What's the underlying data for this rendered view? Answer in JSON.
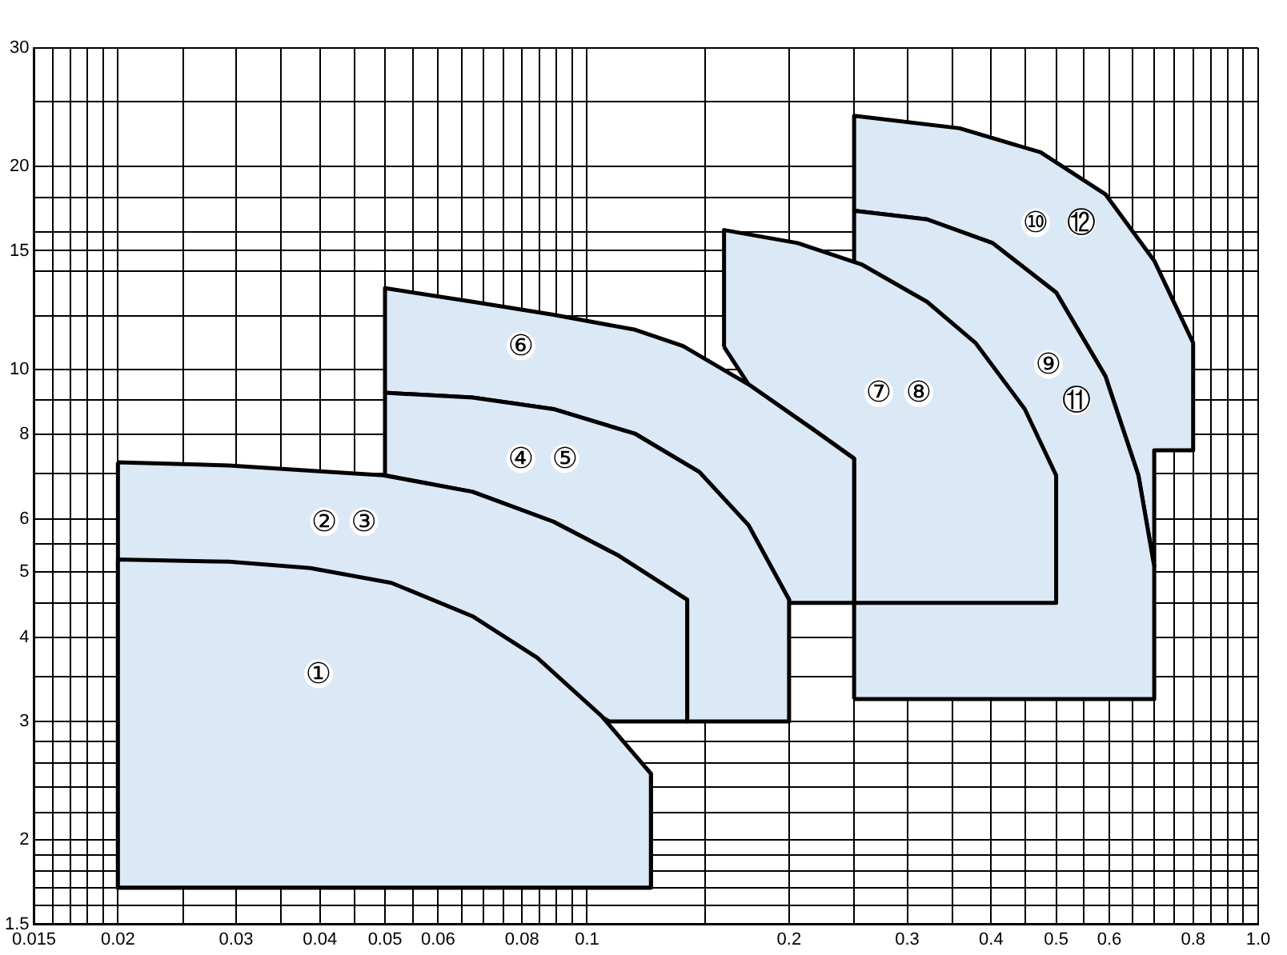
{
  "chart_data": {
    "type": "area",
    "log": "xy",
    "grid": true,
    "xlim": [
      0.015,
      1
    ],
    "ylim": [
      1.5,
      30
    ],
    "xticks": [
      0.015,
      {
        "value": 0.016,
        "label": null
      },
      {
        "value": 0.017,
        "label": null
      },
      {
        "value": 0.018,
        "label": null
      },
      {
        "value": 0.019,
        "label": null
      },
      0.02,
      {
        "value": 0.025,
        "label": null
      },
      0.03,
      {
        "value": 0.035,
        "label": null
      },
      0.04,
      {
        "value": 0.045,
        "label": null
      },
      0.05,
      {
        "value": 0.055,
        "label": null
      },
      0.06,
      {
        "value": 0.065,
        "label": null
      },
      {
        "value": 0.07,
        "label": null
      },
      {
        "value": 0.075,
        "label": null
      },
      0.08,
      {
        "value": 0.085,
        "label": null
      },
      {
        "value": 0.09,
        "label": null
      },
      {
        "value": 0.095,
        "label": null
      },
      0.1,
      {
        "value": 0.15,
        "label": null
      },
      0.2,
      {
        "value": 0.25,
        "label": null
      },
      0.3,
      {
        "value": 0.35,
        "label": null
      },
      0.4,
      {
        "value": 0.45,
        "label": null
      },
      0.5,
      {
        "value": 0.55,
        "label": null
      },
      0.6,
      {
        "value": 0.65,
        "label": null
      },
      {
        "value": 0.7,
        "label": null
      },
      {
        "value": 0.75,
        "label": null
      },
      0.8,
      {
        "value": 0.85,
        "label": null
      },
      {
        "value": 0.9,
        "label": null
      },
      {
        "value": 0.95,
        "label": null
      },
      {
        "value": 1,
        "label": "1.0"
      }
    ],
    "yticks": [
      1.5,
      {
        "value": 1.6,
        "label": null
      },
      {
        "value": 1.7,
        "label": null
      },
      {
        "value": 1.8,
        "label": null
      },
      {
        "value": 1.9,
        "label": null
      },
      2,
      {
        "value": 2.2,
        "label": null
      },
      {
        "value": 2.4,
        "label": null
      },
      {
        "value": 2.6,
        "label": null
      },
      {
        "value": 2.8,
        "label": null
      },
      3,
      {
        "value": 3.5,
        "label": null
      },
      4,
      {
        "value": 4.5,
        "label": null
      },
      5,
      {
        "value": 5.5,
        "label": null
      },
      6,
      {
        "value": 7,
        "label": null
      },
      8,
      {
        "value": 9,
        "label": null
      },
      10,
      {
        "value": 12,
        "label": null
      },
      {
        "value": 14,
        "label": null
      },
      15,
      {
        "value": 16,
        "label": null
      },
      {
        "value": 18,
        "label": null
      },
      20,
      {
        "value": 25,
        "label": null
      },
      30
    ],
    "series": [
      {
        "color": "#dbe8f5",
        "x": [
          0.02,
          0.1245,
          0.1245,
          0.105,
          0.0843,
          0.0675,
          0.0511,
          0.0387,
          0.0293,
          0.02,
          0.02
        ],
        "values": [
          1.7,
          1.7,
          2.51,
          3.06,
          3.73,
          4.3,
          4.82,
          5.07,
          5.18,
          5.22,
          1.7
        ]
      },
      {
        "color": "#dbe8f5",
        "x": [
          0.02,
          0.0293,
          0.0387,
          0.0497,
          0.0675,
          0.0891,
          0.111,
          0.141,
          0.141,
          0.108,
          0.1045,
          0.1245,
          0.1245,
          0.02,
          0.02
        ],
        "values": [
          7.28,
          7.2,
          7.07,
          6.96,
          6.58,
          5.94,
          5.3,
          4.55,
          3.0,
          3.0,
          3.06,
          2.51,
          1.7,
          1.7,
          7.28
        ]
      },
      {
        "color": "#dbe8f5",
        "x": [
          0.05,
          0.05,
          0.0675,
          0.0891,
          0.118,
          0.147,
          0.174,
          0.2,
          0.2,
          0.141,
          0.141,
          0.111,
          0.0891,
          0.0675,
          0.05
        ],
        "values": [
          6.96,
          9.23,
          9.08,
          8.73,
          8.02,
          7.04,
          5.87,
          4.55,
          3.0,
          3.0,
          4.55,
          5.3,
          5.94,
          6.58,
          6.96
        ]
      },
      {
        "color": "#dbe8f5",
        "x": [
          0.05,
          0.05,
          0.0675,
          0.0891,
          0.118,
          0.139,
          0.174,
          0.217,
          0.25,
          0.25,
          0.2,
          0.2,
          0.174,
          0.147,
          0.118,
          0.0891,
          0.0675,
          0.05
        ],
        "values": [
          9.23,
          13.2,
          12.6,
          12.05,
          11.45,
          10.83,
          9.5,
          8.15,
          7.37,
          4.5,
          4.5,
          4.55,
          5.87,
          7.04,
          8.02,
          8.73,
          9.08,
          9.23
        ]
      },
      {
        "color": "#dbe8f5",
        "x": [
          0.16,
          0.16,
          0.206,
          0.257,
          0.321,
          0.379,
          0.449,
          0.5,
          0.5,
          0.25,
          0.25,
          0.217,
          0.174,
          0.16
        ],
        "values": [
          10.8,
          16.1,
          15.4,
          14.3,
          12.6,
          10.95,
          8.73,
          6.96,
          4.5,
          4.5,
          7.37,
          8.15,
          9.5,
          10.8
        ]
      },
      {
        "color": "#dbe8f5",
        "x": [
          0.25,
          0.25,
          0.321,
          0.402,
          0.5,
          0.592,
          0.663,
          0.7,
          0.7,
          0.25
        ],
        "values": [
          3.24,
          17.2,
          16.7,
          15.4,
          13.0,
          9.77,
          6.96,
          5.1,
          3.24,
          3.24
        ]
      },
      {
        "color": "#dbe8f5",
        "x": [
          0.25,
          0.25,
          0.359,
          0.474,
          0.592,
          0.7,
          0.8,
          0.8,
          0.7,
          0.7,
          0.663,
          0.592,
          0.5,
          0.402,
          0.321,
          0.25
        ],
        "values": [
          17.2,
          23.8,
          22.8,
          21.0,
          18.2,
          14.5,
          10.95,
          7.58,
          7.58,
          5.1,
          6.96,
          9.77,
          13.0,
          15.4,
          16.7,
          17.2
        ]
      }
    ],
    "annotations": [
      {
        "text": "①",
        "x": 0.0398,
        "y": 3.53
      },
      {
        "text": "②",
        "x": 0.0406,
        "y": 5.94
      },
      {
        "text": "③",
        "x": 0.0465,
        "y": 5.94
      },
      {
        "text": "④",
        "x": 0.0797,
        "y": 7.37
      },
      {
        "text": "⑤",
        "x": 0.0927,
        "y": 7.37
      },
      {
        "text": "⑥",
        "x": 0.0797,
        "y": 10.83
      },
      {
        "text": "⑦",
        "x": 0.272,
        "y": 9.23
      },
      {
        "text": "⑧",
        "x": 0.312,
        "y": 9.23
      },
      {
        "text": "⑨",
        "x": 0.487,
        "y": 10.17
      },
      {
        "text": "⑪",
        "x": 0.536,
        "y": 8.98
      },
      {
        "text": "⑩",
        "x": 0.466,
        "y": 16.5
      },
      {
        "text": "⑫",
        "x": 0.545,
        "y": 16.5
      }
    ]
  }
}
